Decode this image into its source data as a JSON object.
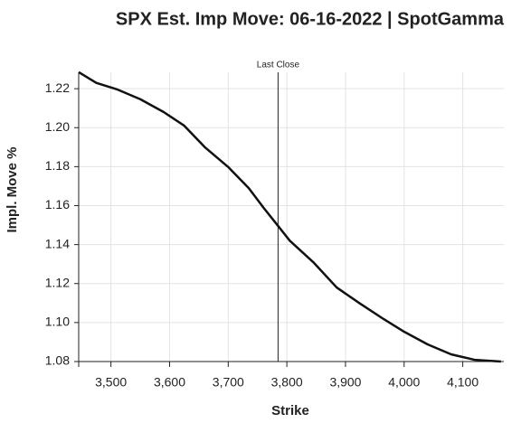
{
  "chart_data": {
    "type": "line",
    "title": "SPX Est. Imp Move: 06-16-2022 | SpotGamma",
    "x_label": "Strike",
    "y_label": "Impl. Move %",
    "x": [
      3445,
      3475,
      3510,
      3550,
      3590,
      3625,
      3660,
      3700,
      3735,
      3760,
      3785,
      3805,
      3845,
      3885,
      3925,
      3965,
      4000,
      4040,
      4080,
      4120,
      4165
    ],
    "series": [
      {
        "name": "Impl. Move",
        "color": "#111111",
        "values": [
          1.2285,
          1.223,
          1.2197,
          1.2146,
          1.208,
          1.201,
          1.19,
          1.1798,
          1.169,
          1.159,
          1.1496,
          1.142,
          1.131,
          1.118,
          1.1097,
          1.1018,
          1.0953,
          1.0888,
          1.0837,
          1.0809,
          1.08
        ]
      }
    ],
    "xlim": [
      3445,
      4170
    ],
    "ylim": [
      1.08,
      1.2284
    ],
    "xticks": [
      {
        "value": 3500,
        "label": "3,500"
      },
      {
        "value": 3600,
        "label": "3,600"
      },
      {
        "value": 3700,
        "label": "3,700"
      },
      {
        "value": 3800,
        "label": "3,800"
      },
      {
        "value": 3900,
        "label": "3,900"
      },
      {
        "value": 4000,
        "label": "4,000"
      },
      {
        "value": 4100,
        "label": "4,100"
      }
    ],
    "yticks": [
      1.08,
      {
        "value": 1.1,
        "label": "1.10"
      },
      1.12,
      1.14,
      1.16,
      1.18,
      {
        "value": 1.2,
        "label": "1.20"
      },
      1.22
    ],
    "annotations": [
      {
        "x": 3785,
        "text": "Last Close"
      }
    ],
    "grid": true
  }
}
